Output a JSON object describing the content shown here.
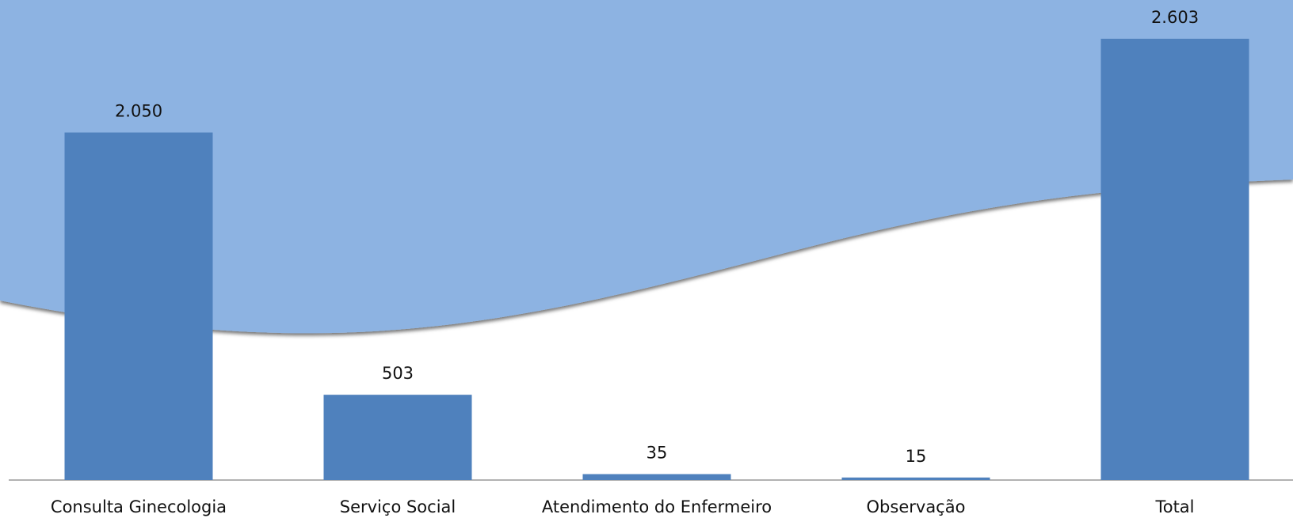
{
  "chart_data": {
    "type": "bar",
    "categories": [
      "Consulta Ginecologia",
      "Serviço Social",
      "Atendimento do Enfermeiro",
      "Observação",
      "Total"
    ],
    "values": [
      2050,
      503,
      35,
      15,
      2603
    ],
    "value_labels": [
      "2.050",
      "503",
      "35",
      "15",
      "2.603"
    ],
    "color": "#4f81bd"
  }
}
